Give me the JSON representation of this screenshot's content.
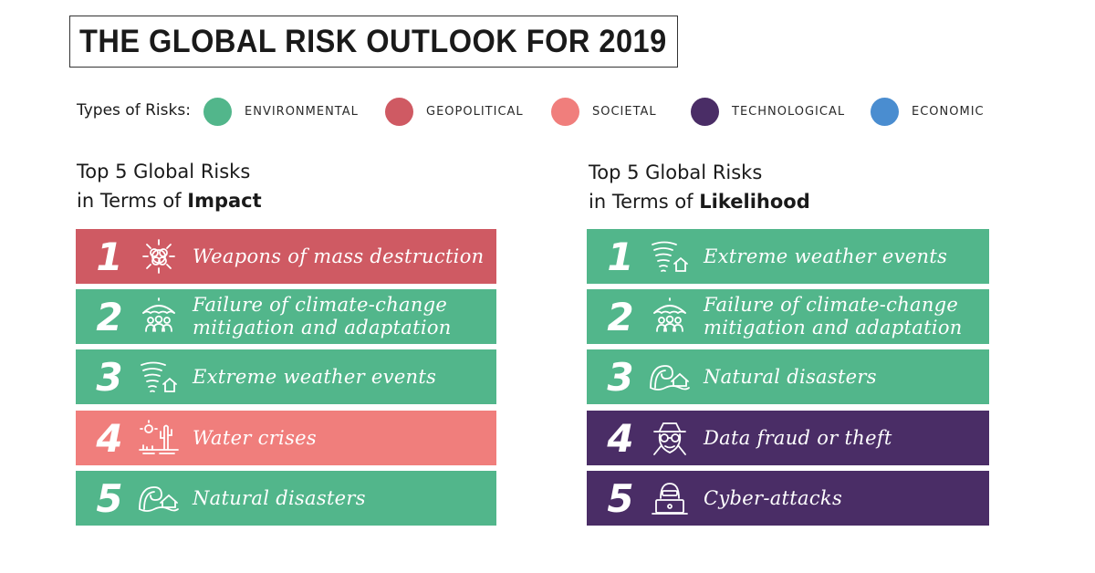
{
  "title": "THE GLOBAL RISK OUTLOOK FOR 2019",
  "legend": {
    "label": "Types of Risks:",
    "items": [
      {
        "name": "ENVIRONMENTAL",
        "color": "#52b68b"
      },
      {
        "name": "GEOPOLITICAL",
        "color": "#cf5a63"
      },
      {
        "name": "SOCIETAL",
        "color": "#f07e7c"
      },
      {
        "name": "TECHNOLOGICAL",
        "color": "#4a2d66"
      },
      {
        "name": "ECONOMIC",
        "color": "#4a8dd0"
      }
    ]
  },
  "impact": {
    "heading_line1": "Top 5 Global Risks",
    "heading_prefix": "in Terms of ",
    "heading_bold": "Impact",
    "rows": [
      {
        "rank": "1",
        "line1": "Weapons of mass destruction",
        "line2": "",
        "color": "#cf5a63",
        "icon": "explosion-icon"
      },
      {
        "rank": "2",
        "line1": "Failure of climate-change",
        "line2": "mitigation and adaptation",
        "color": "#52b68b",
        "icon": "umbrella-people-icon"
      },
      {
        "rank": "3",
        "line1": "Extreme weather events",
        "line2": "",
        "color": "#52b68b",
        "icon": "tornado-house-icon"
      },
      {
        "rank": "4",
        "line1": "Water crises",
        "line2": "",
        "color": "#f07e7c",
        "icon": "desert-cactus-icon"
      },
      {
        "rank": "5",
        "line1": "Natural disasters",
        "line2": "",
        "color": "#52b68b",
        "icon": "wave-house-icon"
      }
    ]
  },
  "likelihood": {
    "heading_line1": "Top 5 Global Risks",
    "heading_prefix": "in Terms of ",
    "heading_bold": "Likelihood",
    "rows": [
      {
        "rank": "1",
        "line1": "Extreme weather events",
        "line2": "",
        "color": "#52b68b",
        "icon": "tornado-house-icon"
      },
      {
        "rank": "2",
        "line1": "Failure of climate-change",
        "line2": "mitigation and adaptation",
        "color": "#52b68b",
        "icon": "umbrella-people-icon"
      },
      {
        "rank": "3",
        "line1": "Natural disasters",
        "line2": "",
        "color": "#52b68b",
        "icon": "wave-house-icon"
      },
      {
        "rank": "4",
        "line1": "Data fraud or theft",
        "line2": "",
        "color": "#4a2d66",
        "icon": "spy-icon"
      },
      {
        "rank": "5",
        "line1": "Cyber-attacks",
        "line2": "",
        "color": "#4a2d66",
        "icon": "hacker-laptop-icon"
      }
    ]
  }
}
